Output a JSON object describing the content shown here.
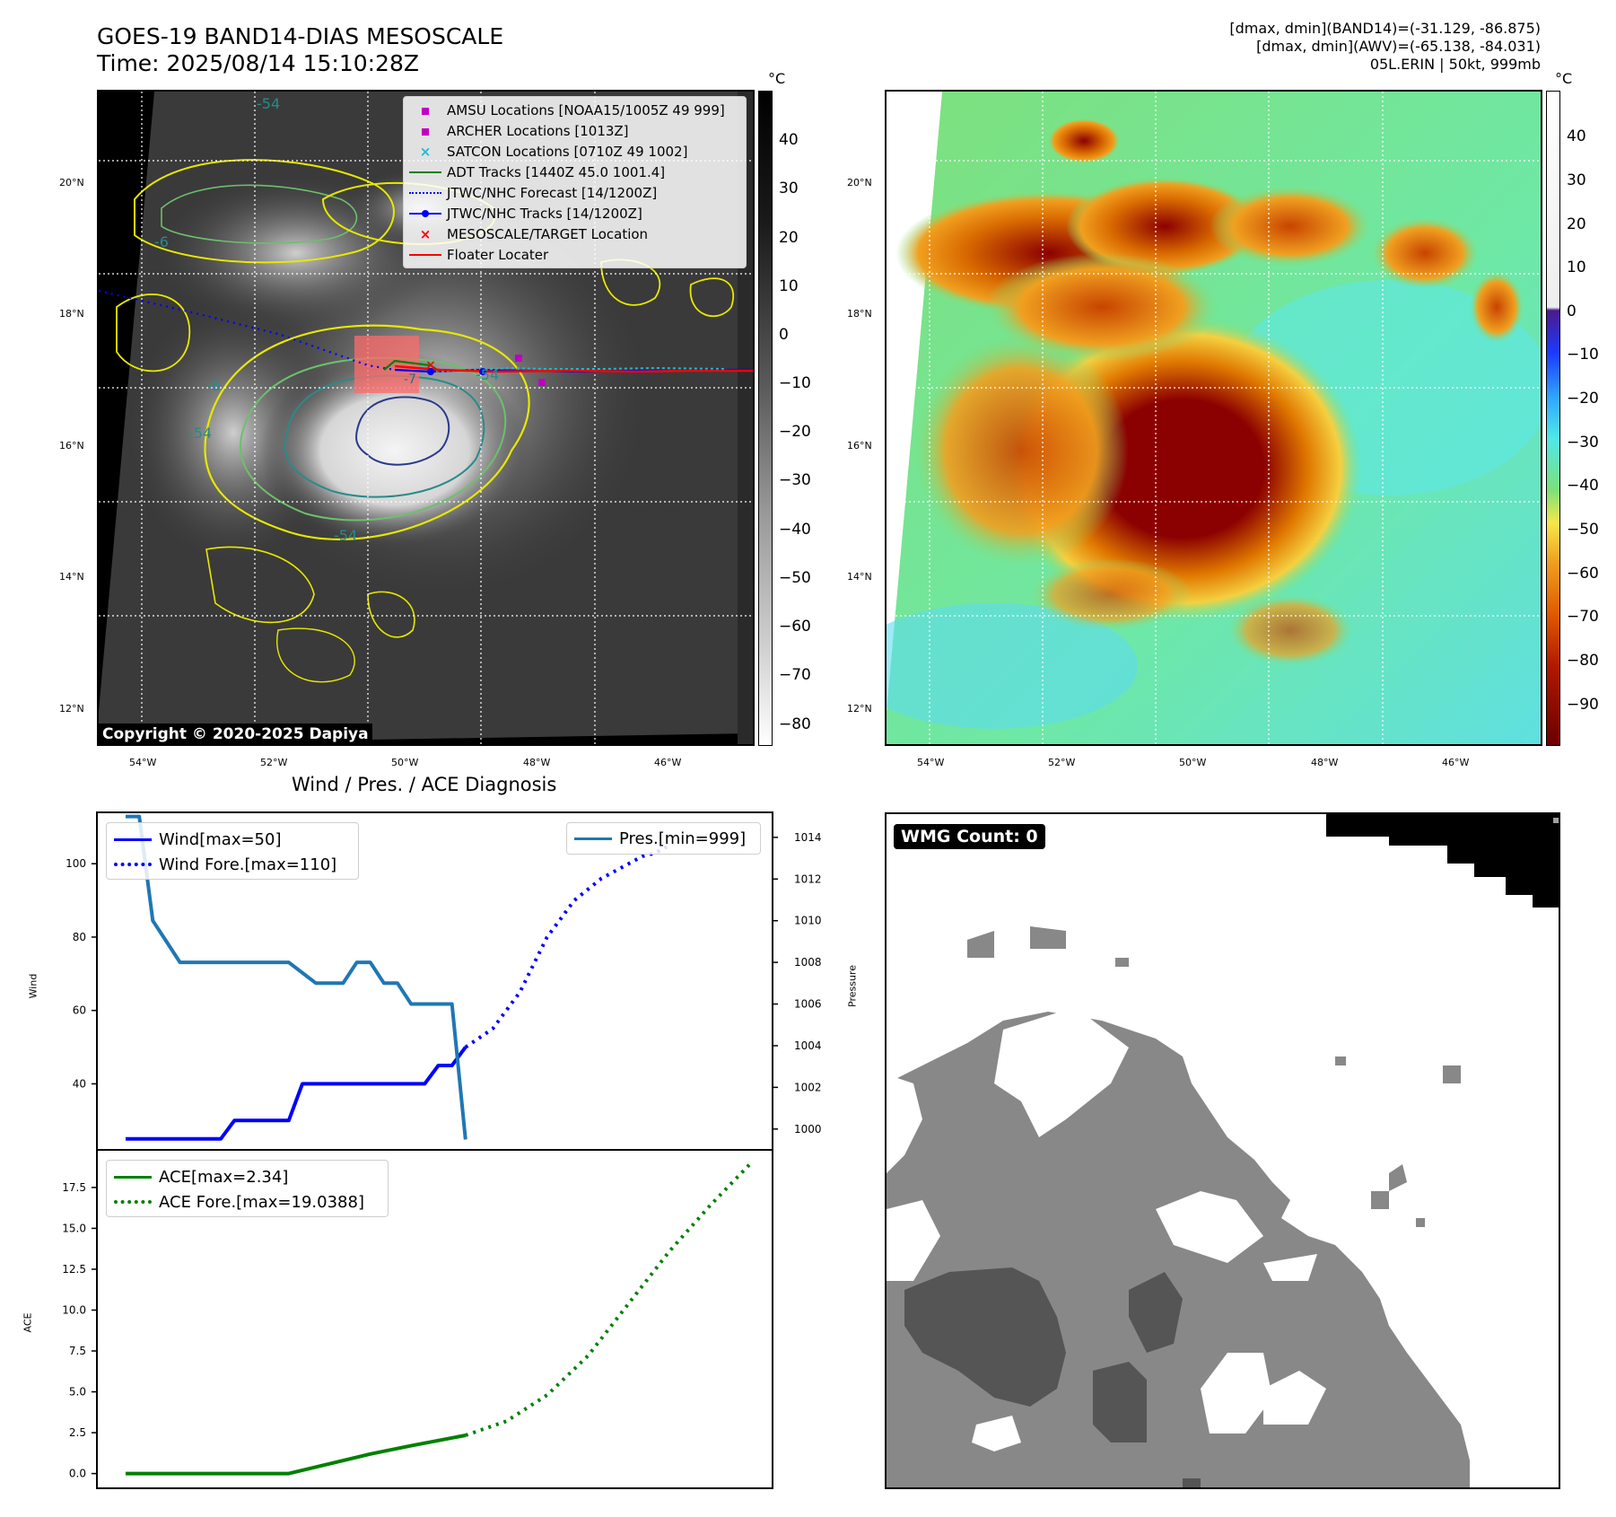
{
  "header": {
    "title_line1": "GOES-19 BAND14-DIAS MESOSCALE",
    "title_line2": "Time: 2025/08/14 15:10:28Z",
    "info_line1": "[dmax, dmin](BAND14)=(-31.129, -86.875)",
    "info_line2": "[dmax, dmin](AWV)=(-65.138, -84.031)",
    "info_line3": "05L.ERIN | 50kt, 999mb"
  },
  "map_left": {
    "unit": "°C",
    "colorbar_ticks": [
      "40",
      "30",
      "20",
      "10",
      "0",
      "−10",
      "−20",
      "−30",
      "−40",
      "−50",
      "−60",
      "−70",
      "−80"
    ],
    "lat_labels": [
      "20°N",
      "18°N",
      "16°N",
      "14°N",
      "12°N"
    ],
    "lon_labels": [
      "54°W",
      "52°W",
      "50°W",
      "48°W",
      "46°W"
    ],
    "copyright": "Copyright © 2020-2025 Dapiya",
    "contour_labels": [
      "-54",
      "-54",
      "-54",
      "-6",
      "-6",
      "-54"
    ],
    "legend": [
      {
        "label": "AMSU Locations [NOAA15/1005Z 49 999]",
        "color": "#c000c0",
        "marker": "square"
      },
      {
        "label": "ARCHER Locations [1013Z]",
        "color": "#c000c0",
        "marker": "square"
      },
      {
        "label": "SATCON Locations [0710Z 49 1002]",
        "color": "#17becf",
        "marker": "x"
      },
      {
        "label": "ADT Tracks [1440Z 45.0 1001.4]",
        "color": "#008000",
        "marker": "line"
      },
      {
        "label": "JTWC/NHC Forecast [14/1200Z]",
        "color": "#0000ff",
        "marker": "dotted"
      },
      {
        "label": "JTWC/NHC Tracks [14/1200Z]",
        "color": "#0000ff",
        "marker": "dotline"
      },
      {
        "label": "MESOSCALE/TARGET Location",
        "color": "#ff0000",
        "marker": "x"
      },
      {
        "label": "Floater Locater",
        "color": "#ff0000",
        "marker": "line"
      }
    ]
  },
  "map_right": {
    "unit": "°C",
    "colorbar_ticks": [
      "40",
      "30",
      "20",
      "10",
      "0",
      "−10",
      "−20",
      "−30",
      "−40",
      "−50",
      "−60",
      "−70",
      "−80",
      "−90"
    ],
    "lat_labels": [
      "20°N",
      "18°N",
      "16°N",
      "14°N",
      "12°N"
    ],
    "lon_labels": [
      "54°W",
      "52°W",
      "50°W",
      "48°W",
      "46°W"
    ]
  },
  "wmg": {
    "count_label": "WMG Count: 0"
  },
  "chart_data": [
    {
      "type": "line",
      "title": "Wind / Pres. / ACE Diagnosis",
      "ylabel": "Wind",
      "ylabel2": "Pressure",
      "ylim": [
        22,
        114
      ],
      "ylim2": [
        999.0,
        1015.2
      ],
      "yticks": [
        40,
        60,
        80,
        100
      ],
      "yticks2": [
        1000,
        1002,
        1004,
        1006,
        1008,
        1010,
        1012,
        1014
      ],
      "series": [
        {
          "name": "Wind[max=50]",
          "color": "#0000ff",
          "style": "solid",
          "x": [
            0,
            7,
            8,
            12,
            13,
            22,
            23,
            24,
            25
          ],
          "y": [
            25,
            25,
            30,
            30,
            40,
            40,
            45,
            45,
            50
          ]
        },
        {
          "name": "Wind Fore.[max=110]",
          "color": "#0000ff",
          "style": "dotted",
          "x": [
            25,
            27,
            29,
            31,
            33,
            35,
            37,
            38,
            39,
            40
          ],
          "y": [
            50,
            55,
            65,
            80,
            90,
            96,
            100,
            102,
            103,
            105
          ]
        },
        {
          "name": "Pres.[min=999]",
          "color": "#1f77b4",
          "style": "solid",
          "axis": "right",
          "x": [
            0,
            1,
            2,
            3,
            4,
            5,
            7,
            9,
            10,
            11,
            12,
            14,
            15,
            16,
            17,
            18,
            19,
            20,
            21,
            22,
            23,
            24,
            25
          ],
          "y": [
            1015,
            1015,
            1010,
            1009,
            1008,
            1008,
            1008,
            1008,
            1008,
            1008,
            1008,
            1007,
            1007,
            1007,
            1008,
            1008,
            1007,
            1007,
            1006,
            1006,
            1006,
            1006,
            999.5
          ]
        }
      ]
    },
    {
      "type": "line",
      "ylabel": "ACE",
      "ylim": [
        -0.9,
        19.8
      ],
      "yticks": [
        "0.0",
        "2.5",
        "5.0",
        "7.5",
        "10.0",
        "12.5",
        "15.0",
        "17.5"
      ],
      "series": [
        {
          "name": "ACE[max=2.34]",
          "color": "#008000",
          "style": "solid",
          "x": [
            0,
            3,
            6,
            9,
            12,
            15,
            18,
            21,
            25
          ],
          "y": [
            0,
            0,
            0,
            0,
            0,
            0.6,
            1.2,
            1.7,
            2.34
          ]
        },
        {
          "name": "ACE Fore.[max=19.0388]",
          "color": "#008000",
          "style": "dotted",
          "x": [
            25,
            28,
            31,
            34,
            37,
            40,
            43,
            46
          ],
          "y": [
            2.34,
            3.2,
            4.8,
            7.2,
            10.4,
            13.6,
            16.4,
            19.0
          ]
        }
      ]
    }
  ]
}
